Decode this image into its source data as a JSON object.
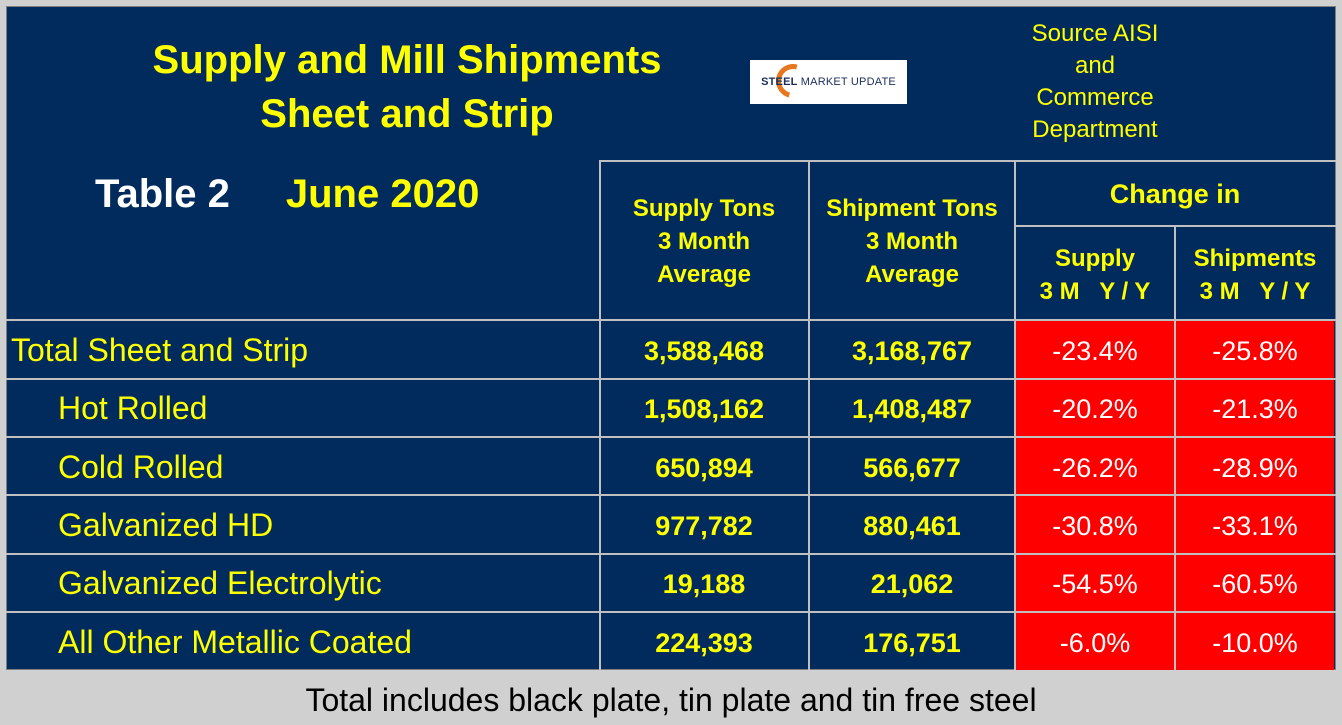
{
  "title_line1": "Supply and Mill Shipments",
  "title_line2": "Sheet and Strip",
  "logo": {
    "text_bold": "STEEL",
    "text_rest": " MARKET UPDATE"
  },
  "source": [
    "Source AISI",
    "and",
    "Commerce",
    "Department"
  ],
  "table_label": "Table 2",
  "period": "June 2020",
  "colors": {
    "background": "#002b5c",
    "text": "#ffff00",
    "negative_cell": "#ff0000",
    "grid": "#c0c0c0"
  },
  "chart_data": {
    "type": "table",
    "columns": {
      "supply": [
        "Supply Tons",
        "3 Month",
        "Average"
      ],
      "shipments": [
        "Shipment Tons",
        "3 Month",
        "Average"
      ],
      "change_group": "Change in",
      "change_supply": [
        "Supply",
        "3 M   Y / Y"
      ],
      "change_shipments": [
        "Shipments",
        "3 M   Y / Y"
      ]
    },
    "rows": [
      {
        "label": "Total Sheet and Strip",
        "supply": "3,588,468",
        "shipments": "3,168,767",
        "supply_change": "-23.4%",
        "shipments_change": "-25.8%"
      },
      {
        "label": "Hot Rolled",
        "supply": "1,508,162",
        "shipments": "1,408,487",
        "supply_change": "-20.2%",
        "shipments_change": "-21.3%"
      },
      {
        "label": "Cold Rolled",
        "supply": "650,894",
        "shipments": "566,677",
        "supply_change": "-26.2%",
        "shipments_change": "-28.9%"
      },
      {
        "label": "Galvanized HD",
        "supply": "977,782",
        "shipments": "880,461",
        "supply_change": "-30.8%",
        "shipments_change": "-33.1%"
      },
      {
        "label": "Galvanized Electrolytic",
        "supply": "19,188",
        "shipments": "21,062",
        "supply_change": "-54.5%",
        "shipments_change": "-60.5%"
      },
      {
        "label": "All Other Metallic Coated",
        "supply": "224,393",
        "shipments": "176,751",
        "supply_change": "-6.0%",
        "shipments_change": "-10.0%"
      }
    ]
  },
  "footnote": "Total includes black plate, tin plate and tin free steel"
}
